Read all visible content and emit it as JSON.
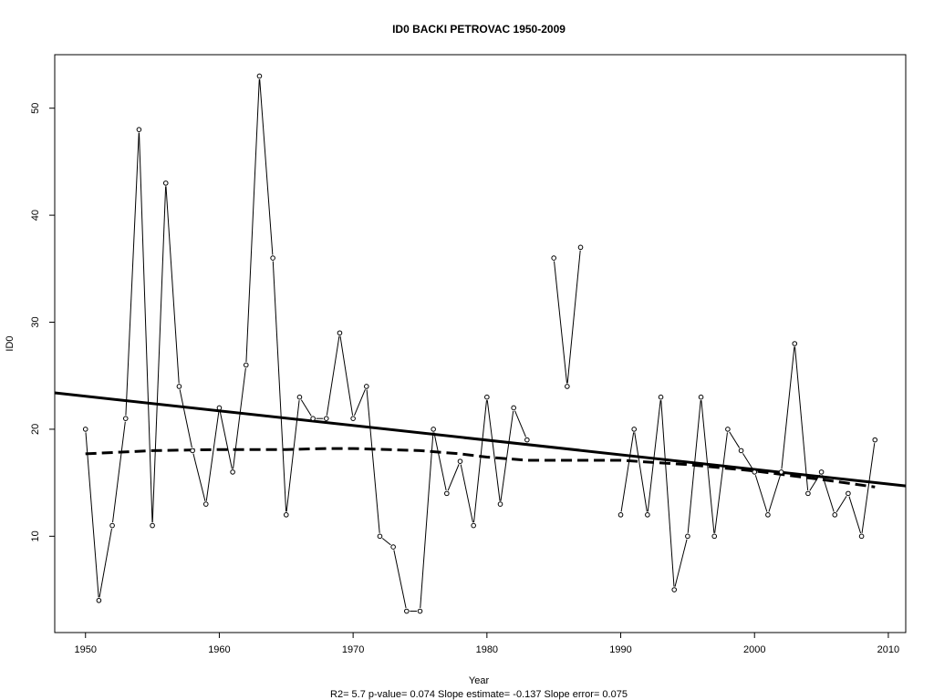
{
  "chart_data": {
    "type": "line",
    "title": "ID0    BACKI PETROVAC 1950-2009",
    "xlabel": "Year",
    "ylabel": "ID0",
    "footnote": "R2= 5.7  p-value= 0.074  Slope estimate= -0.137  Slope error= 0.075",
    "xlim": [
      1947.7,
      2011.3
    ],
    "ylim": [
      1.0,
      55.0
    ],
    "x_ticks": [
      1950,
      1960,
      1970,
      1980,
      1990,
      2000,
      2010
    ],
    "y_ticks": [
      10,
      20,
      30,
      40,
      50
    ],
    "grid": false,
    "legend": "none",
    "series": [
      {
        "style": "line-with-points",
        "x": [
          1950,
          1951,
          1952,
          1953,
          1954,
          1955,
          1956,
          1957,
          1958,
          1959,
          1960,
          1961,
          1962,
          1963,
          1964,
          1965,
          1966,
          1967,
          1968,
          1969,
          1970,
          1971,
          1972,
          1973,
          1974,
          1975,
          1976,
          1977,
          1978,
          1979,
          1980,
          1981,
          1982,
          1983,
          1984,
          1985,
          1986,
          1987,
          1988,
          1989,
          1990,
          1991,
          1992,
          1993,
          1994,
          1995,
          1996,
          1997,
          1998,
          1999,
          2000,
          2001,
          2002,
          2003,
          2004,
          2005,
          2006,
          2007,
          2008,
          2009
        ],
        "y": [
          20,
          4,
          11,
          21,
          48,
          11,
          43,
          24,
          18,
          13,
          22,
          16,
          26,
          53,
          36,
          12,
          23,
          21,
          21,
          29,
          21,
          24,
          10,
          9,
          3,
          3,
          20,
          14,
          17,
          11,
          23,
          13,
          22,
          19,
          null,
          36,
          24,
          37,
          null,
          null,
          12,
          20,
          12,
          23,
          5,
          10,
          23,
          10,
          20,
          18,
          16,
          12,
          16,
          28,
          14,
          16,
          12,
          14,
          10,
          19
        ]
      },
      {
        "style": "solid-trend",
        "x": [
          1947.7,
          2011.3
        ],
        "y": [
          23.4,
          14.7
        ]
      },
      {
        "style": "dashed-smooth",
        "x": [
          1950,
          1955,
          1960,
          1965,
          1968,
          1970,
          1975,
          1978,
          1980,
          1983,
          1990,
          1995,
          2000,
          2005,
          2009
        ],
        "y": [
          17.7,
          18.0,
          18.1,
          18.1,
          18.2,
          18.2,
          18.0,
          17.7,
          17.4,
          17.1,
          17.1,
          16.7,
          16.1,
          15.3,
          14.6
        ]
      }
    ]
  }
}
